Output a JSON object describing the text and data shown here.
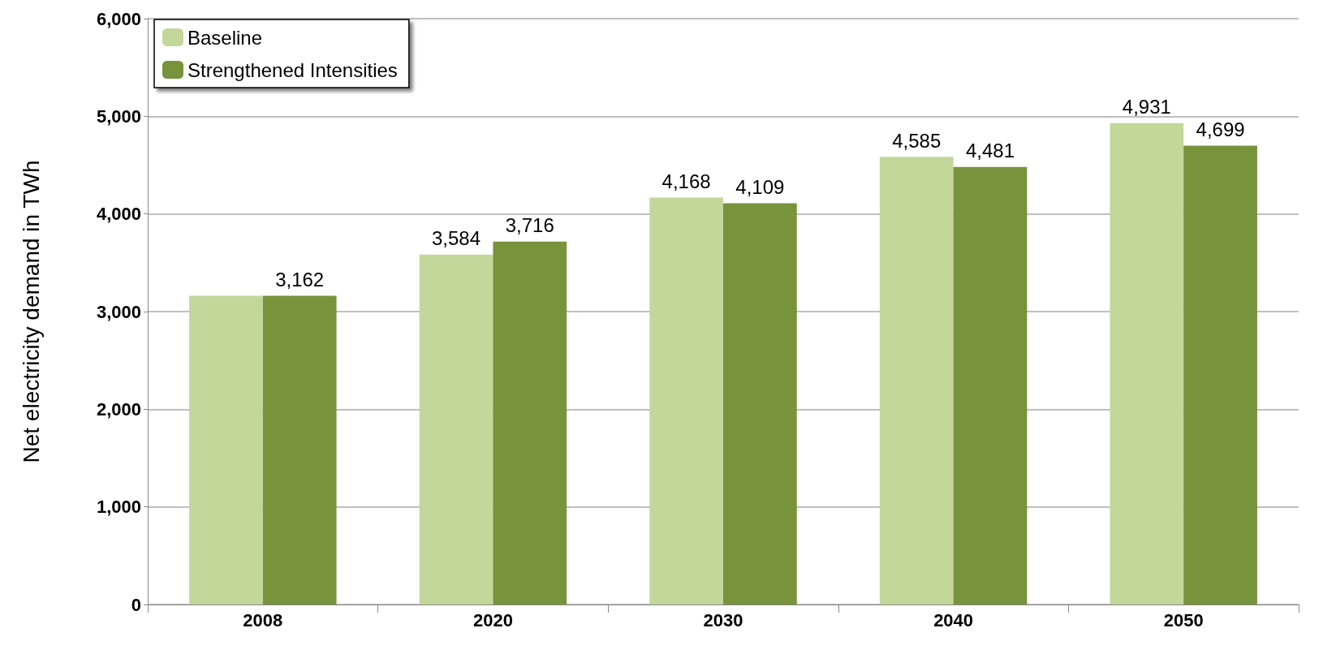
{
  "chart_data": {
    "type": "bar",
    "ylabel": "Net electricity demand in TWh",
    "categories": [
      "2008",
      "2020",
      "2030",
      "2040",
      "2050"
    ],
    "series": [
      {
        "name": "Baseline",
        "color": "#c4d79b",
        "values": [
          3162,
          3584,
          4168,
          4585,
          4931
        ],
        "value_labels": [
          null,
          "3,584",
          "4,168",
          "4,585",
          "4,931"
        ]
      },
      {
        "name": "Strengthened Intensities",
        "color": "#77933c",
        "values": [
          3162,
          3716,
          4109,
          4481,
          4699
        ],
        "value_labels": [
          "3,162",
          "3,716",
          "4,109",
          "4,481",
          "4,699"
        ]
      }
    ],
    "ylim": [
      0,
      6000
    ],
    "yticks": [
      0,
      {
        "value": 1000,
        "label": "1,000"
      },
      {
        "value": 2000,
        "label": "2,000"
      },
      {
        "value": 3000,
        "label": "3,000"
      },
      {
        "value": 4000,
        "label": "4,000"
      },
      {
        "value": 5000,
        "label": "5,000"
      },
      {
        "value": 6000,
        "label": "6,000"
      }
    ],
    "grid": "y",
    "legend": "top left"
  }
}
